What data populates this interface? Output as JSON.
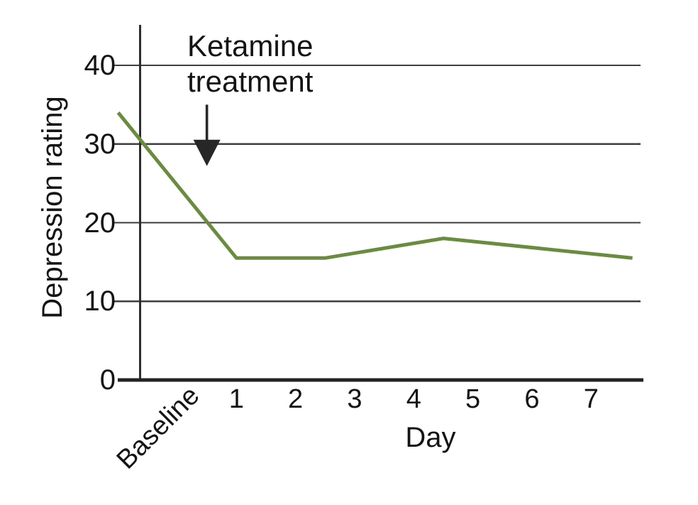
{
  "figure": {
    "y_axis": {
      "title": "Depression rating",
      "ticks": [
        "40",
        "30",
        "20",
        "10",
        "0"
      ]
    },
    "x_axis": {
      "title": "Day",
      "ticks": [
        "Baseline",
        "1",
        "2",
        "3",
        "4",
        "5",
        "6",
        "7"
      ]
    },
    "annotation": {
      "text": "Ketamine\ntreatment"
    },
    "colors": {
      "line": "#6a8c3e",
      "grid": "#3e3e3e",
      "x_axis": "#232323",
      "y_axis": "#2d2d2d",
      "arrow": "#272727",
      "text": "#141414",
      "background": "#ffffff"
    }
  },
  "chart_data": {
    "type": "line",
    "title": "",
    "xlabel": "Day",
    "ylabel": "Depression rating",
    "x_tick_labels": [
      "Baseline",
      "1",
      "2",
      "3",
      "4",
      "5",
      "6",
      "7"
    ],
    "y_ticks": [
      0,
      10,
      20,
      30,
      40
    ],
    "ylim": [
      0,
      44
    ],
    "grid": true,
    "legend": false,
    "series": [
      {
        "name": "Depression rating",
        "color": "#6a8c3e",
        "points": [
          {
            "x": "Baseline",
            "y": 34
          },
          {
            "x": 1,
            "y": 15.5
          },
          {
            "x": 2.5,
            "y": 15.5
          },
          {
            "x": 4.5,
            "y": 18
          },
          {
            "x": 7.7,
            "y": 15.5
          }
        ]
      }
    ],
    "annotations": [
      {
        "text": "Ketamine treatment",
        "type": "down-arrow",
        "x_day": 0.5,
        "shaft_top_value": 35,
        "arrow_tip_value": 27.2
      }
    ]
  }
}
